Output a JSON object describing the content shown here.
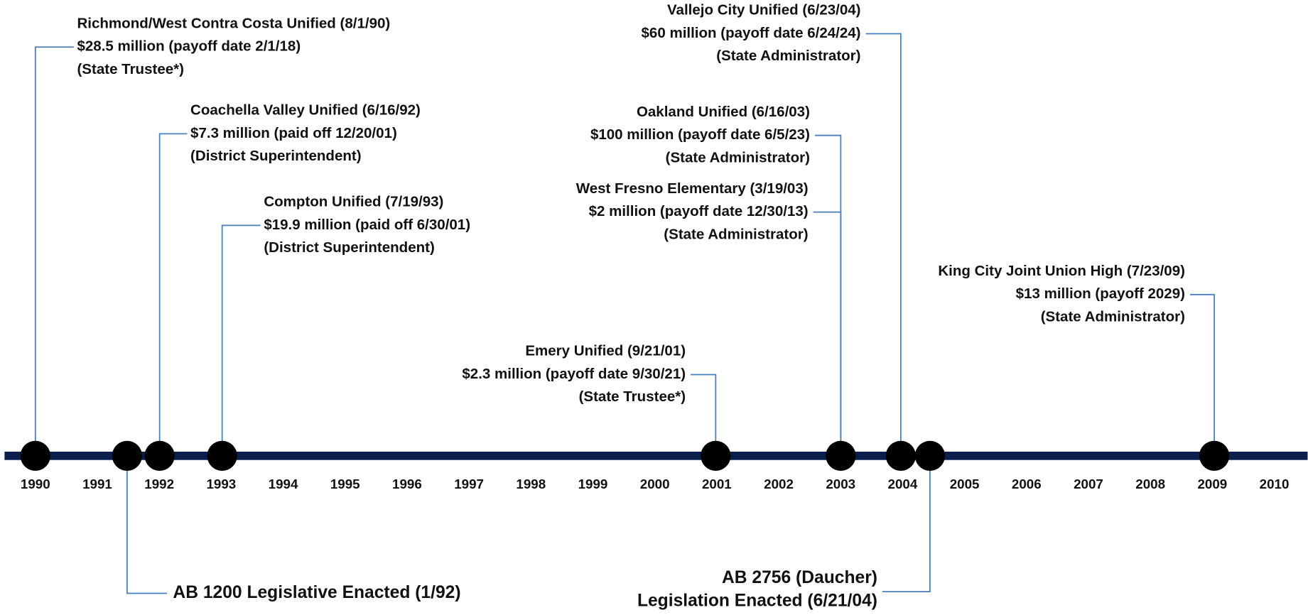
{
  "timeline": {
    "years": [
      "1990",
      "1991",
      "1992",
      "1993",
      "1994",
      "1995",
      "1996",
      "1997",
      "1998",
      "1999",
      "2000",
      "2001",
      "2002",
      "2003",
      "2004",
      "2005",
      "2006",
      "2007",
      "2008",
      "2009",
      "2010"
    ]
  },
  "events": [
    {
      "lines": [
        "Richmond/West Contra Costa Unified (8/1/90)",
        "$28.5 million (payoff date 2/1/18)",
        "(State Trustee*)"
      ]
    },
    {
      "lines": [
        "Coachella Valley Unified (6/16/92)",
        "$7.3 million (paid off 12/20/01)",
        "(District Superintendent)"
      ]
    },
    {
      "lines": [
        "Compton Unified (7/19/93)",
        "$19.9 million (paid off 6/30/01)",
        "(District Superintendent)"
      ]
    },
    {
      "lines": [
        "Emery Unified (9/21/01)",
        "$2.3 million (payoff date 9/30/21)",
        "(State Trustee*)"
      ]
    },
    {
      "lines": [
        "Oakland Unified (6/16/03)",
        "$100 million (payoff date 6/5/23)",
        "(State Administrator)"
      ]
    },
    {
      "lines": [
        "West Fresno Elementary (3/19/03)",
        "$2 million (payoff date 12/30/13)",
        "(State Administrator)"
      ]
    },
    {
      "lines": [
        "Vallejo City Unified (6/23/04)",
        "$60 million (payoff date 6/24/24)",
        "(State Administrator)"
      ]
    },
    {
      "lines": [
        "King City Joint Union High (7/23/09)",
        "$13 million (payoff 2029)",
        "(State Administrator)"
      ]
    }
  ],
  "legislation": [
    {
      "lines": [
        "AB 1200 Legislative Enacted (1/92)"
      ]
    },
    {
      "lines": [
        "AB 2756 (Daucher)",
        "Legislation Enacted (6/21/04)"
      ]
    }
  ]
}
